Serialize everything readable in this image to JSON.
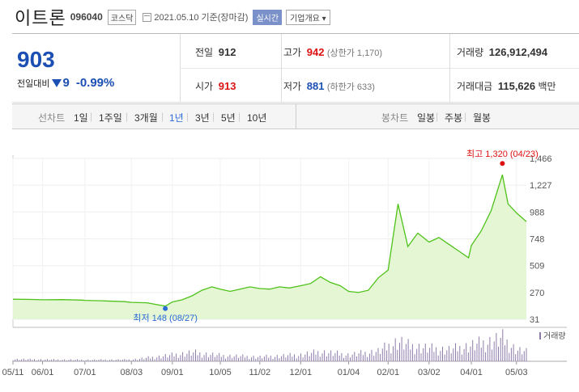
{
  "header": {
    "stock_name": "이트론",
    "stock_code": "096040",
    "market": "코스닥",
    "date": "2021.05.10",
    "date_suffix": "기준(장마감)",
    "realtime_label": "실시간",
    "company_btn_label": "기업개요 ▾"
  },
  "summary": {
    "current_price": "903",
    "change_label": "전일대비",
    "change_value": "9",
    "change_pct": "-0.99%",
    "prev_close": {
      "label": "전일",
      "value": "912"
    },
    "open": {
      "label": "시가",
      "value": "913"
    },
    "high": {
      "label": "고가",
      "value": "942",
      "limit": "(상한가 1,170)"
    },
    "low": {
      "label": "저가",
      "value": "881",
      "limit": "(하한가 633)"
    },
    "volume": {
      "label": "거래량",
      "value": "126,912,494"
    },
    "amount": {
      "label": "거래대금",
      "value": "115,626",
      "unit": "백만"
    }
  },
  "tabs": {
    "line_label": "선차트",
    "line_periods": [
      "1일",
      "1주일",
      "3개월",
      "1년",
      "3년",
      "5년",
      "10년"
    ],
    "active_period": "1년",
    "candle_label": "봉차트",
    "candle_periods": [
      "일봉",
      "주봉",
      "월봉"
    ]
  },
  "chart_data": {
    "type": "area",
    "colors": {
      "line": "#4fc21a",
      "fill": "#e4f6d4",
      "high": "#dd1111",
      "low": "#2b6bd8",
      "volume": "#8e7cab"
    },
    "y_ticks": [
      1466,
      1227,
      988,
      748,
      509,
      270,
      31
    ],
    "ylim": [
      31,
      1466
    ],
    "x_ticks": [
      "05/11",
      "06/01",
      "07/01",
      "08/03",
      "09/01",
      "10/05",
      "11/02",
      "12/01",
      "01/04",
      "02/01",
      "03/02",
      "04/01",
      "05/03"
    ],
    "high_annotation": {
      "label": "최고 1,320 (04/23)",
      "value": 1320
    },
    "low_annotation": {
      "label": "최저 148 (08/27)",
      "value": 148
    },
    "volume_label": "거래량",
    "price_series": [
      [
        "2020-05-11",
        210
      ],
      [
        "2020-05-25",
        208
      ],
      [
        "2020-06-01",
        205
      ],
      [
        "2020-06-15",
        206
      ],
      [
        "2020-06-29",
        202
      ],
      [
        "2020-07-01",
        200
      ],
      [
        "2020-07-15",
        195
      ],
      [
        "2020-07-29",
        188
      ],
      [
        "2020-08-03",
        182
      ],
      [
        "2020-08-14",
        178
      ],
      [
        "2020-08-27",
        148
      ],
      [
        "2020-09-01",
        185
      ],
      [
        "2020-09-08",
        205
      ],
      [
        "2020-09-15",
        240
      ],
      [
        "2020-09-22",
        290
      ],
      [
        "2020-09-29",
        320
      ],
      [
        "2020-10-05",
        300
      ],
      [
        "2020-10-12",
        280
      ],
      [
        "2020-10-19",
        300
      ],
      [
        "2020-10-26",
        320
      ],
      [
        "2020-11-02",
        305
      ],
      [
        "2020-11-09",
        300
      ],
      [
        "2020-11-16",
        320
      ],
      [
        "2020-11-23",
        310
      ],
      [
        "2020-12-01",
        330
      ],
      [
        "2020-12-08",
        350
      ],
      [
        "2020-12-15",
        410
      ],
      [
        "2020-12-22",
        360
      ],
      [
        "2020-12-29",
        330
      ],
      [
        "2021-01-04",
        280
      ],
      [
        "2021-01-11",
        270
      ],
      [
        "2021-01-18",
        290
      ],
      [
        "2021-01-25",
        400
      ],
      [
        "2021-02-01",
        470
      ],
      [
        "2021-02-08",
        1060
      ],
      [
        "2021-02-15",
        680
      ],
      [
        "2021-02-22",
        800
      ],
      [
        "2021-03-02",
        720
      ],
      [
        "2021-03-09",
        760
      ],
      [
        "2021-03-16",
        700
      ],
      [
        "2021-03-23",
        640
      ],
      [
        "2021-03-30",
        580
      ],
      [
        "2021-04-01",
        690
      ],
      [
        "2021-04-08",
        820
      ],
      [
        "2021-04-15",
        1000
      ],
      [
        "2021-04-23",
        1320
      ],
      [
        "2021-04-27",
        1060
      ],
      [
        "2021-05-03",
        980
      ],
      [
        "2021-05-10",
        903
      ]
    ],
    "volume_series": [
      [
        "2020-05-11",
        1.5
      ],
      [
        "2020-06-01",
        1.2
      ],
      [
        "2020-07-01",
        1.0
      ],
      [
        "2020-08-03",
        1.2
      ],
      [
        "2020-08-27",
        3.8
      ],
      [
        "2020-09-15",
        6.0
      ],
      [
        "2020-10-05",
        4.0
      ],
      [
        "2020-11-02",
        3.0
      ],
      [
        "2020-12-01",
        4.5
      ],
      [
        "2020-12-15",
        6.5
      ],
      [
        "2021-01-04",
        4.5
      ],
      [
        "2021-01-25",
        7.0
      ],
      [
        "2021-02-08",
        14.0
      ],
      [
        "2021-02-15",
        11.0
      ],
      [
        "2021-03-02",
        9.0
      ],
      [
        "2021-03-16",
        8.0
      ],
      [
        "2021-04-01",
        11.0
      ],
      [
        "2021-04-15",
        14.0
      ],
      [
        "2021-04-23",
        16.0
      ],
      [
        "2021-05-03",
        8.0
      ],
      [
        "2021-05-10",
        6.5
      ]
    ]
  }
}
